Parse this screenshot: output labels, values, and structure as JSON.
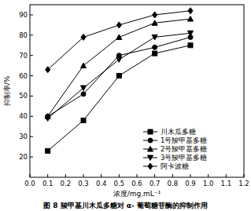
{
  "chart_data": {
    "type": "line",
    "title": "图 8  羧甲基川木瓜多糖对 α- 葡萄糖苷酶的抑制作用",
    "x_label": "浓度/mg.mL⁻¹",
    "y_label": "抑制率/%",
    "x": [
      0.1,
      0.3,
      0.5,
      0.7,
      0.9
    ],
    "series": [
      {
        "name": "川木瓜多糖",
        "color": "#000000",
        "marker": "square",
        "values": [
          23,
          38,
          60,
          71,
          75
        ]
      },
      {
        "name": "1号羧甲基多糖",
        "color": "#000000",
        "marker": "circle",
        "values": [
          40,
          51,
          70,
          74,
          79
        ]
      },
      {
        "name": "2号羧甲基多糖",
        "color": "#000000",
        "marker": "triangle",
        "values": [
          40,
          65,
          79,
          86,
          88
        ]
      },
      {
        "name": "3号羧甲基多糖",
        "color": "#000000",
        "marker": "triangle-down",
        "values": [
          39,
          54,
          68,
          79,
          81
        ]
      },
      {
        "name": "阿卡波糖",
        "color": "#000000",
        "marker": "diamond",
        "values": [
          63,
          79,
          85,
          90,
          92
        ]
      }
    ],
    "xlim": [
      0,
      1.2
    ],
    "xticks": [
      {
        "value": 0,
        "label": "0.0"
      },
      0.1,
      0.2,
      0.3,
      0.4,
      0.5,
      0.6,
      0.7,
      0.8,
      0.9,
      {
        "value": 1,
        "label": "1.0"
      },
      1.1,
      1.2
    ],
    "ylim": [
      10,
      95
    ],
    "yticks": [
      20,
      30,
      40,
      50,
      60,
      70,
      80,
      90
    ],
    "legend": "lower right",
    "grid": false
  }
}
